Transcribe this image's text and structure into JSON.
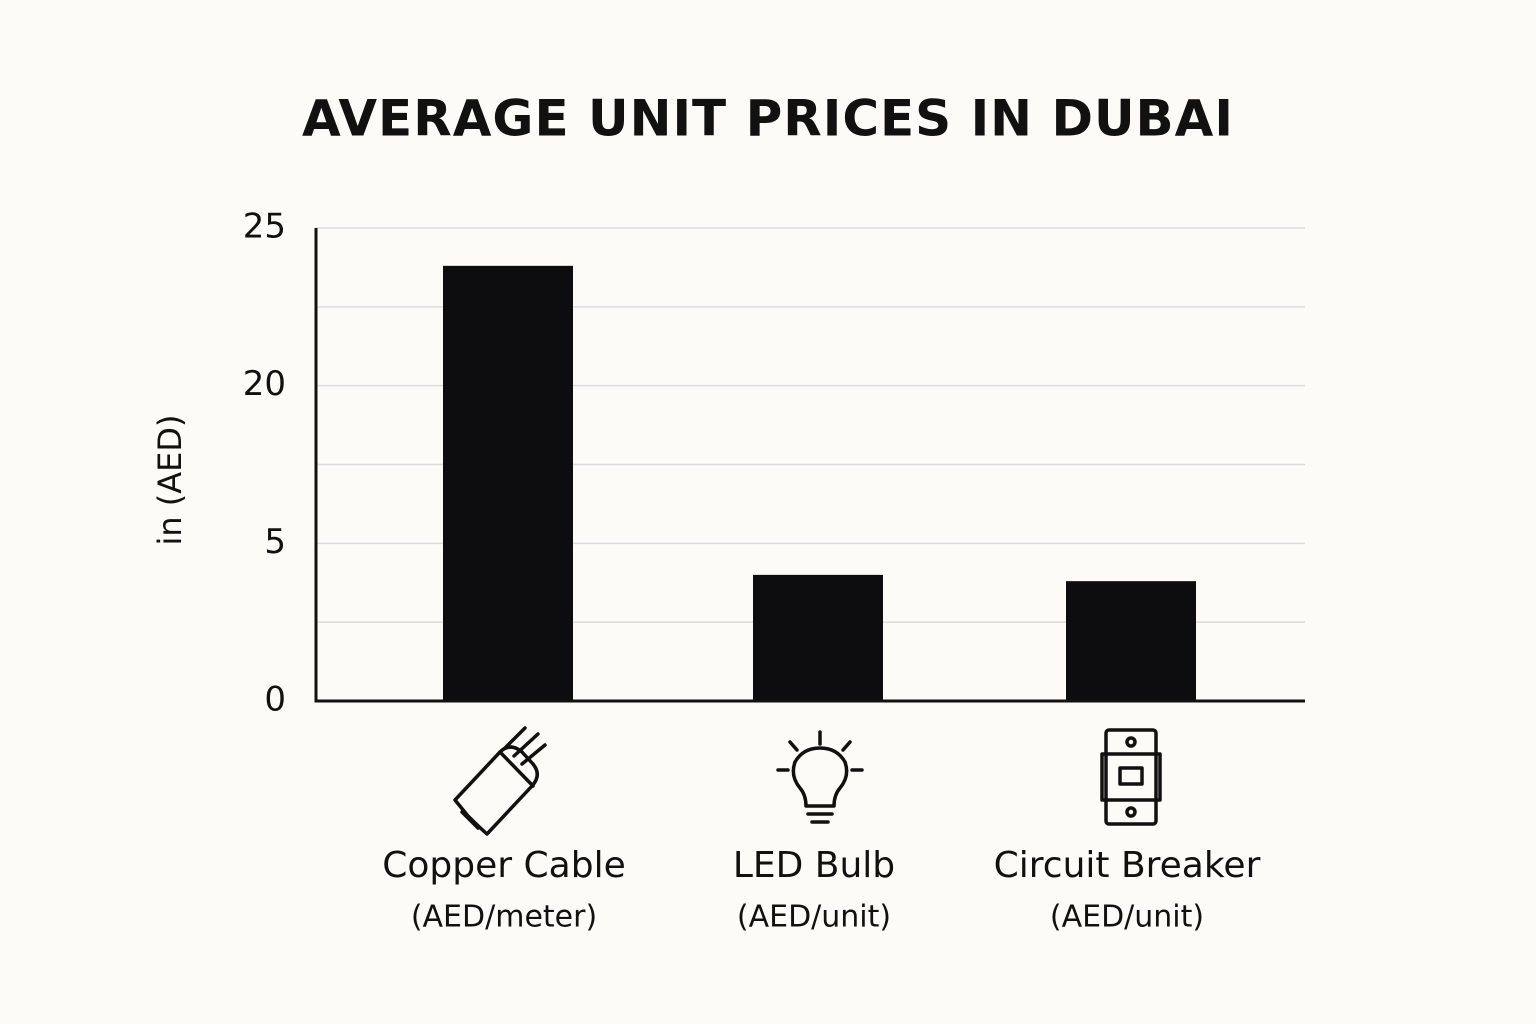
{
  "chart_data": {
    "type": "bar",
    "title": "AVERAGE UNIT PRICES IN DUBAI",
    "y_label": "in (AED)",
    "categories": [
      "Copper Cable",
      "LED Bulb",
      "Circuit Breaker"
    ],
    "category_units": [
      "(AED/meter)",
      "(AED/unit)",
      "(AED/unit)"
    ],
    "values": [
      23.8,
      4,
      3.8
    ],
    "color": "#0d0d0f",
    "ylim": [
      0,
      25
    ],
    "yticks": [
      25,
      20,
      5,
      0
    ],
    "grid": true
  }
}
